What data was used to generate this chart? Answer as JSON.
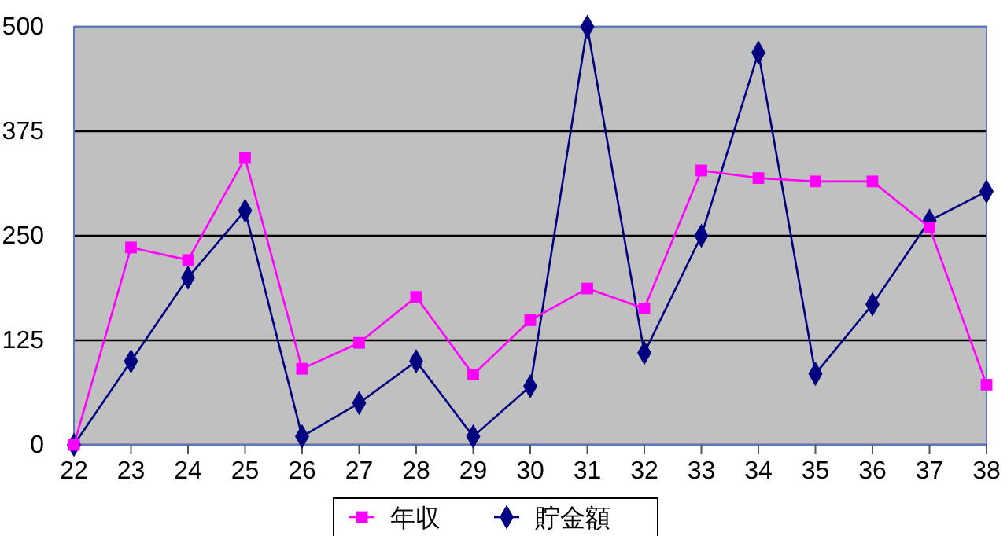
{
  "chart_data": {
    "type": "line",
    "x": [
      22,
      23,
      24,
      25,
      26,
      27,
      28,
      29,
      30,
      31,
      32,
      33,
      34,
      35,
      36,
      37,
      38
    ],
    "xlim": [
      22,
      38
    ],
    "xticks": [
      22,
      23,
      24,
      25,
      26,
      27,
      28,
      29,
      30,
      31,
      32,
      33,
      34,
      35,
      36,
      37,
      38
    ],
    "ylim": [
      0,
      500
    ],
    "yticks": [
      0,
      125,
      250,
      375,
      500
    ],
    "grid": "y",
    "legend": "bottom",
    "series": [
      {
        "name": "年収",
        "color": "#ff00ff",
        "marker": "square",
        "values": [
          0,
          236,
          221,
          343,
          91,
          122,
          177,
          84,
          149,
          187,
          163,
          328,
          319,
          315,
          315,
          260,
          72
        ]
      },
      {
        "name": "貯金額",
        "color": "#000080",
        "marker": "diamond",
        "values": [
          0,
          100,
          200,
          280,
          10,
          50,
          100,
          10,
          70,
          500,
          110,
          250,
          469,
          85,
          168,
          268,
          303
        ]
      }
    ]
  }
}
